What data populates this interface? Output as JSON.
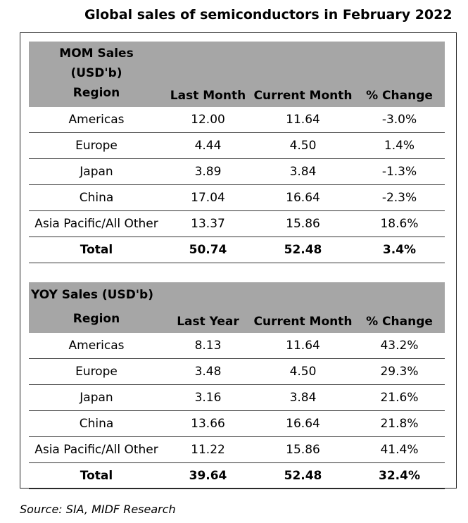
{
  "title": "Global sales of semiconductors in February 2022",
  "mom": {
    "header_line1": "MOM Sales",
    "header_line2": "(USD'b)",
    "columns": [
      "Region",
      "Last Month",
      "Current Month",
      "% Change"
    ],
    "rows": [
      [
        "Americas",
        "12.00",
        "11.64",
        "-3.0%"
      ],
      [
        "Europe",
        "4.44",
        "4.50",
        "1.4%"
      ],
      [
        "Japan",
        "3.89",
        "3.84",
        "-1.3%"
      ],
      [
        "China",
        "17.04",
        "16.64",
        "-2.3%"
      ],
      [
        "Asia Pacific/All Other",
        "13.37",
        "15.86",
        "18.6%"
      ]
    ],
    "total": [
      "Total",
      "50.74",
      "52.48",
      "3.4%"
    ]
  },
  "yoy": {
    "header_label": "YOY Sales (USD'b)",
    "columns": [
      "Region",
      "Last Year",
      "Current Month",
      "% Change"
    ],
    "rows": [
      [
        "Americas",
        "8.13",
        "11.64",
        "43.2%"
      ],
      [
        "Europe",
        "3.48",
        "4.50",
        "29.3%"
      ],
      [
        "Japan",
        "3.16",
        "3.84",
        "21.6%"
      ],
      [
        "China",
        "13.66",
        "16.64",
        "21.8%"
      ],
      [
        "Asia Pacific/All Other",
        "11.22",
        "15.86",
        "41.4%"
      ]
    ],
    "total": [
      "Total",
      "39.64",
      "52.48",
      "32.4%"
    ]
  },
  "source": "Source: SIA, MIDF Research"
}
